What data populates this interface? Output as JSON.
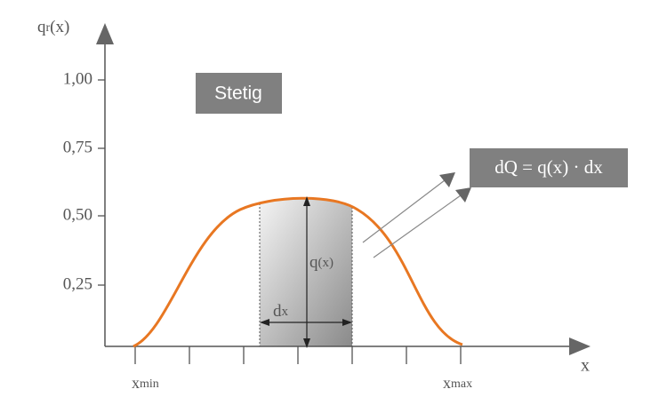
{
  "y_axis": {
    "symbol": "q",
    "subscript": "r",
    "argument": "(x)",
    "ticks": [
      "1,00",
      "0,75",
      "0,50",
      "0,25"
    ]
  },
  "x_axis": {
    "label": "x",
    "start": {
      "symbol": "x",
      "subscript": "min"
    },
    "end": {
      "symbol": "x",
      "subscript": "max"
    }
  },
  "box_label": "Stetig",
  "formula": "dQ = q(x) · dx",
  "height_label": {
    "symbol": "q",
    "argument": "(x)"
  },
  "width_label": {
    "symbol": "d",
    "argument": "x"
  }
}
